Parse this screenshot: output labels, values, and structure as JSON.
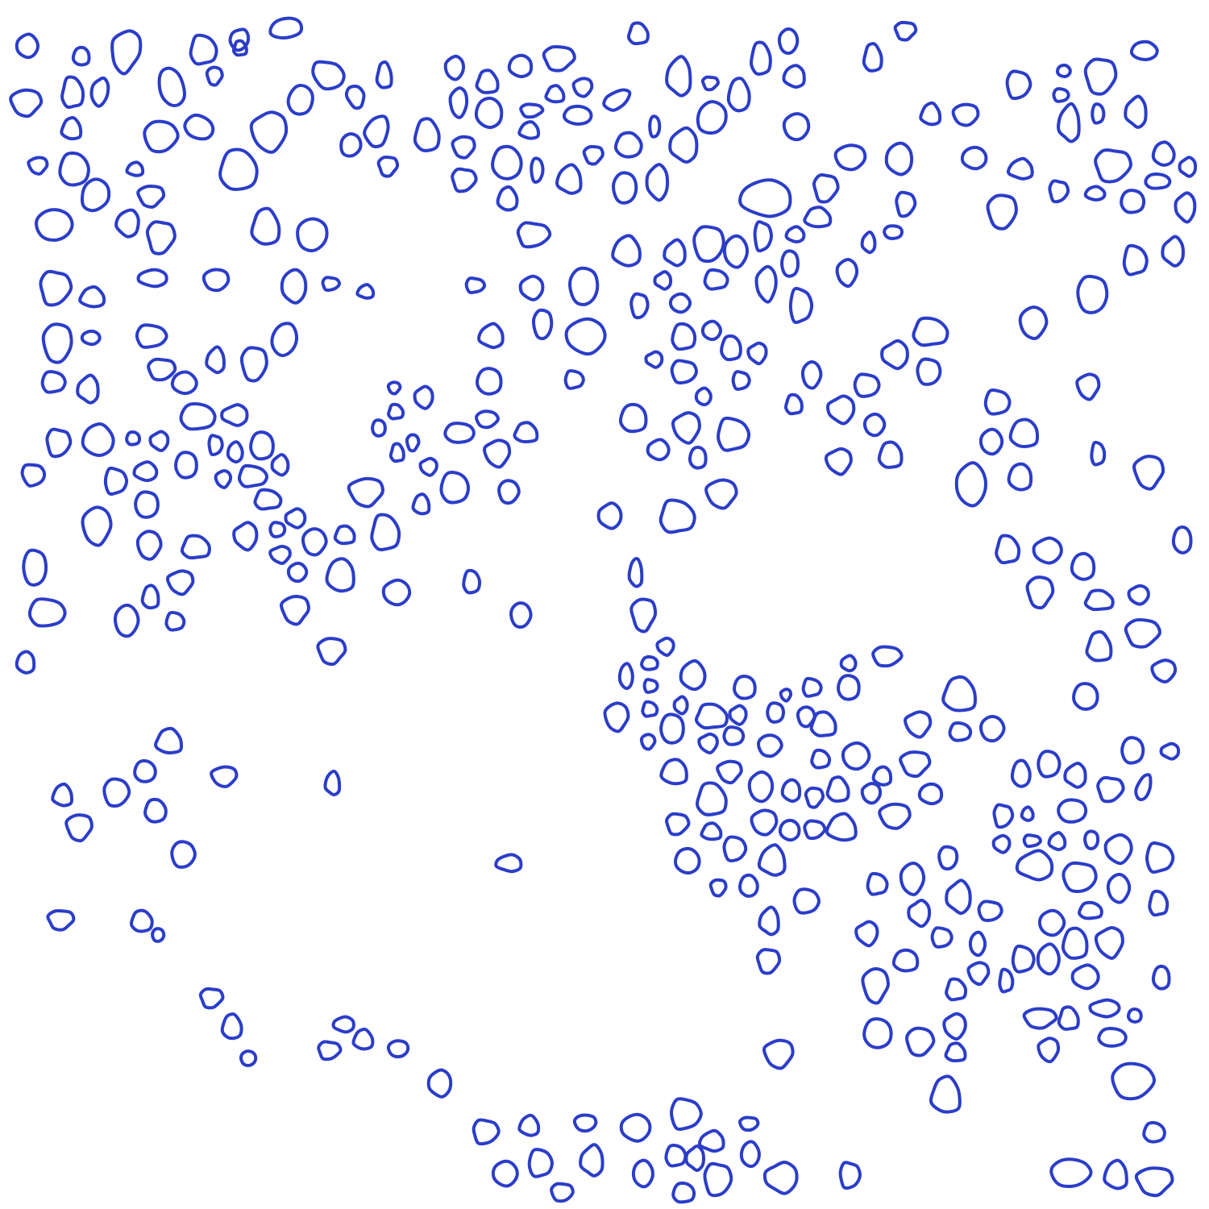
{
  "image": {
    "kind": "hand-drawn blob outlines on white (cell-like ring shapes)",
    "background_color": "#ffffff",
    "stroke_color": "#2b3dc8",
    "outline_shape": "irregular rounded ring",
    "approximate_outline_count": 420,
    "visible_text": "none"
  }
}
